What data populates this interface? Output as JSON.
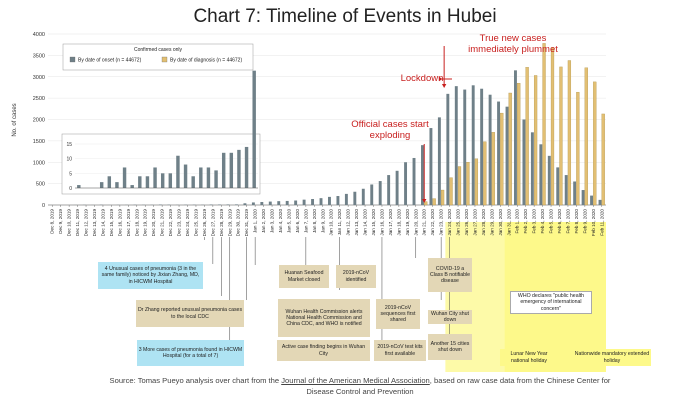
{
  "title": "Chart 7: Timeline of Events in Hubei",
  "chart_data": {
    "type": "bar",
    "ylabel": "No. of cases",
    "ylim": [
      0,
      4000
    ],
    "yticks": [
      0,
      500,
      1000,
      1500,
      2000,
      2500,
      3000,
      3500,
      4000
    ],
    "legend_title": "Confirmed cases only",
    "categories": [
      "Dec 8, 2019",
      "Dec 9, 2019",
      "Dec 10, 2019",
      "Dec 11, 2019",
      "Dec 12, 2019",
      "Dec 13, 2019",
      "Dec 14, 2019",
      "Dec 15, 2019",
      "Dec 16, 2019",
      "Dec 17, 2019",
      "Dec 18, 2019",
      "Dec 19, 2019",
      "Dec 20, 2019",
      "Dec 21, 2019",
      "Dec 22, 2019",
      "Dec 23, 2019",
      "Dec 24, 2019",
      "Dec 25, 2019",
      "Dec 26, 2019",
      "Dec 27, 2019",
      "Dec 28, 2019",
      "Dec 29, 2019",
      "Dec 30, 2019",
      "Dec 31, 2019",
      "Jan 1, 2020",
      "Jan 2, 2020",
      "Jan 3, 2020",
      "Jan 4, 2020",
      "Jan 5, 2020",
      "Jan 6, 2020",
      "Jan 7, 2020",
      "Jan 8, 2020",
      "Jan 9, 2020",
      "Jan 10, 2020",
      "Jan 11, 2020",
      "Jan 12, 2020",
      "Jan 13, 2020",
      "Jan 14, 2020",
      "Jan 15, 2020",
      "Jan 16, 2020",
      "Jan 17, 2020",
      "Jan 18, 2020",
      "Jan 19, 2020",
      "Jan 20, 2020",
      "Jan 21, 2020",
      "Jan 22, 2020",
      "Jan 23, 2020",
      "Jan 24, 2020",
      "Jan 25, 2020",
      "Jan 26, 2020",
      "Jan 27, 2020",
      "Jan 28, 2020",
      "Jan 29, 2020",
      "Jan 30, 2020",
      "Jan 31, 2020",
      "Feb 1, 2020",
      "Feb 2, 2020",
      "Feb 3, 2020",
      "Feb 4, 2020",
      "Feb 5, 2020",
      "Feb 6, 2020",
      "Feb 7, 2020",
      "Feb 8, 2020",
      "Feb 9, 2020",
      "Feb 10, 2020",
      "Feb 11, 2020"
    ],
    "series": [
      {
        "name": "By date of onset (n = 44672)",
        "color": "#6f8088",
        "values": [
          1,
          0,
          0,
          2,
          4,
          2,
          7,
          1,
          4,
          4,
          7,
          5,
          5,
          11,
          8,
          4,
          7,
          7,
          6,
          12,
          12,
          13,
          14,
          40,
          60,
          70,
          80,
          90,
          95,
          105,
          125,
          140,
          160,
          190,
          210,
          260,
          310,
          380,
          480,
          560,
          700,
          800,
          1000,
          1100,
          1400,
          1800,
          2050,
          2600,
          2780,
          2700,
          2800,
          2720,
          2580,
          2420,
          2300,
          3150,
          2000,
          1700,
          1420,
          1150,
          880,
          700,
          550,
          350,
          220,
          120
        ]
      },
      {
        "name": "By date of diagnosis (n = 44672)",
        "color": "#e2bf73",
        "values": [
          0,
          0,
          0,
          0,
          0,
          0,
          0,
          0,
          0,
          0,
          0,
          0,
          0,
          0,
          0,
          0,
          0,
          0,
          0,
          0,
          0,
          0,
          0,
          0,
          0,
          0,
          0,
          0,
          0,
          0,
          0,
          0,
          0,
          0,
          0,
          0,
          0,
          0,
          0,
          0,
          0,
          0,
          0,
          0,
          80,
          150,
          350,
          640,
          900,
          1000,
          1080,
          1480,
          1700,
          2150,
          2620,
          2850,
          3220,
          3030,
          3780,
          3680,
          3230,
          3380,
          2640,
          3210,
          2880,
          2130
        ]
      }
    ],
    "inset": {
      "ylim": [
        0,
        15
      ],
      "yticks": [
        0,
        5,
        10,
        15
      ],
      "start_category": "Dec 8, 2019",
      "end_category": "Dec 31, 2019"
    },
    "annotations": [
      {
        "text": "True new cases immediately plummet",
        "category": "Jan 23, 2020"
      },
      {
        "text": "Lockdown",
        "category": "Jan 23, 2020"
      },
      {
        "text": "Official cases start exploding",
        "category": "Jan 21, 2020"
      }
    ]
  },
  "events": [
    {
      "text": "4 Unusual cases of pneumonia (3 in the same family) noticed by Jixian Zhang, MD, in HICWM Hospital",
      "style": "blue",
      "date": "Dec 26, 2019"
    },
    {
      "text": "Dr Zhang reported unusual pneumonia cases to the local CDC",
      "style": "tan",
      "date": "Dec 27, 2019"
    },
    {
      "text": "3 More cases of pneumonia found in HICWM Hospital (for a total of 7)",
      "style": "blue",
      "date": "Dec 28, 2019"
    },
    {
      "text": "Huanan Seafood Market closed",
      "style": "tan",
      "date": "Jan 1, 2020"
    },
    {
      "text": "2019-nCoV identified",
      "style": "tan",
      "date": "Jan 7, 2020"
    },
    {
      "text": "Wuhan Health Commission alerts National Health Commission and China CDC, and WHO is notified",
      "style": "tan",
      "date": "Dec 31, 2019"
    },
    {
      "text": "2019-nCoV sequences first shared",
      "style": "tan",
      "date": "Jan 11, 2020"
    },
    {
      "text": "Active case finding begins in Wuhan City",
      "style": "tan",
      "date": "Dec 29, 2019"
    },
    {
      "text": "2019-nCoV test kits first available",
      "style": "tan",
      "date": "Jan 16, 2020"
    },
    {
      "text": "COVID-19 a Class B notifiable disease",
      "style": "tan",
      "date": "Jan 20, 2020"
    },
    {
      "text": "Wuhan City shut down",
      "style": "tan",
      "date": "Jan 23, 2020"
    },
    {
      "text": "Another 15 cities shut down",
      "style": "tan",
      "date": "Jan 24, 2020"
    },
    {
      "text": "WHO declares \"public health emergency of international concern\"",
      "style": "white",
      "date": "Jan 30, 2020"
    },
    {
      "text": "Lunar New Year national holiday",
      "style": "yellow"
    },
    {
      "text": "Nationwide mandatory extended holiday",
      "style": "yellow"
    }
  ],
  "source": {
    "prefix": "Source: Tomas Pueyo analysis over chart from the ",
    "link": "Journal of the American Medical Association",
    "suffix": ", based on raw case data from the Chinese Center for Disease Control and Prevention"
  }
}
